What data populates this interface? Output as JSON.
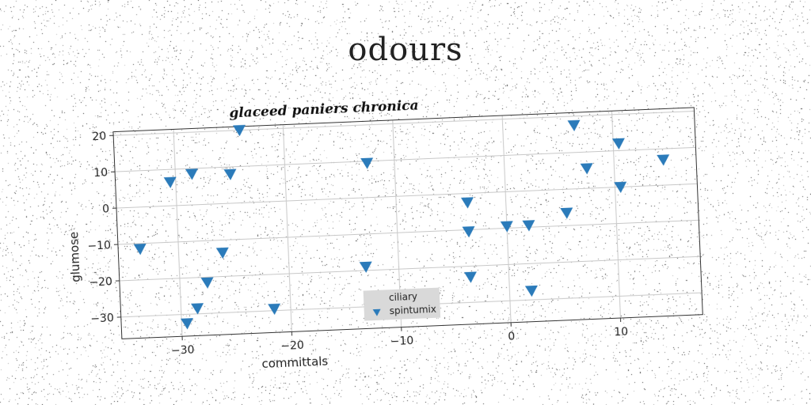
{
  "figure_title": "odours",
  "chart_data": {
    "type": "scatter",
    "title": "glaceed paniers chronica",
    "xlabel": "committals",
    "ylabel": "glumose",
    "xlim": [
      -35.5,
      17.5
    ],
    "ylim": [
      -36,
      21
    ],
    "xticks": [
      -30,
      -20,
      -10,
      0,
      10
    ],
    "yticks": [
      -30,
      -20,
      -10,
      0,
      10,
      20
    ],
    "x_tick_labels": [
      "−30",
      "−20",
      "−10",
      "0",
      "10"
    ],
    "y_tick_labels": [
      "−30",
      "−20",
      "−10",
      "0",
      "10",
      "20"
    ],
    "grid": true,
    "legend": {
      "placement": "lower center",
      "entries": [
        {
          "label": "ciliary",
          "marker": "none"
        },
        {
          "label": "spintumix",
          "marker": "triangle-down"
        }
      ]
    },
    "series": [
      {
        "name": "spintumix",
        "color": "#2b7bba",
        "marker": "triangle-down",
        "points": [
          [
            -33.5,
            -11.5
          ],
          [
            -30.5,
            6.5
          ],
          [
            -28.5,
            8.5
          ],
          [
            -24,
            20
          ],
          [
            -25,
            8
          ],
          [
            -26,
            -13.5
          ],
          [
            -27.5,
            -21.5
          ],
          [
            -28.5,
            -28.5
          ],
          [
            -29.5,
            -32.5
          ],
          [
            -21.5,
            -29.5
          ],
          [
            -13,
            -19
          ],
          [
            -12.5,
            9.5
          ],
          [
            -3.5,
            -2.5
          ],
          [
            -3.5,
            -10.5
          ],
          [
            -3.5,
            -23
          ],
          [
            0,
            -9.5
          ],
          [
            2,
            -9.5
          ],
          [
            2,
            -27.5
          ],
          [
            5.5,
            -6.5
          ],
          [
            6.5,
            17.5
          ],
          [
            7.5,
            5.5
          ],
          [
            10.5,
            12
          ],
          [
            10.5,
            0
          ],
          [
            14.5,
            7
          ]
        ]
      }
    ]
  }
}
